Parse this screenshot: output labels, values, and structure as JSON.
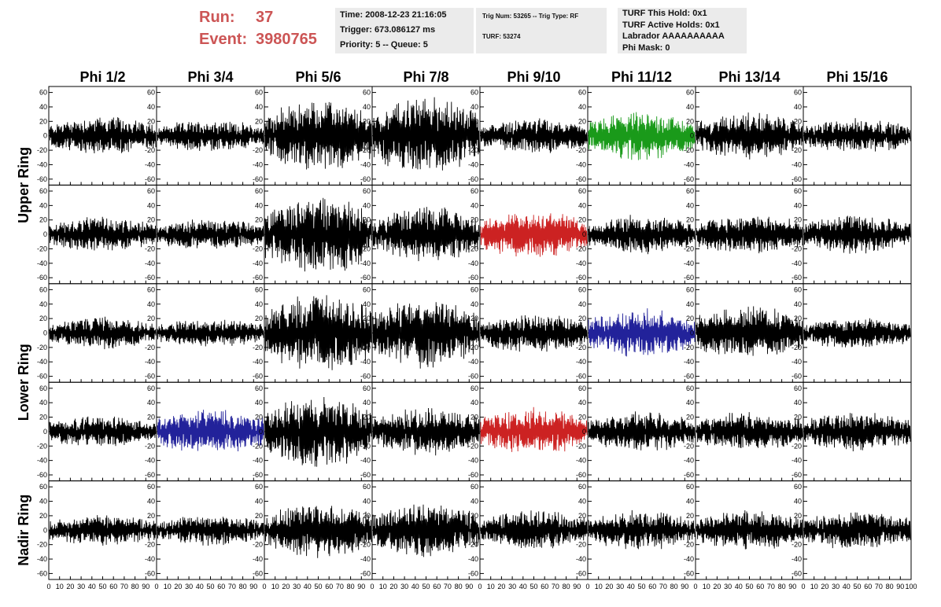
{
  "header": {
    "run_label": "Run:",
    "run_value": "37",
    "event_label": "Event:",
    "event_value": "3980765"
  },
  "info_time": {
    "time": "Time: 2008-12-23 21:16:05",
    "trigger": "Trigger: 673.086127 ms",
    "priority": "Priority: 5 -- Queue: 5"
  },
  "info_trig": {
    "trig": "Trig Num: 53265 -- Trig Type: RF",
    "turf": "TURF: 53274"
  },
  "info_turf": {
    "this_hold": "TURF This Hold: 0x1",
    "active_holds": "TURF Active Holds: 0x1",
    "labrador": "Labrador AAAAAAAAAA",
    "phi_mask": "Phi Mask: 0"
  },
  "chart_data": {
    "type": "line",
    "columns": [
      "Phi 1/2",
      "Phi 3/4",
      "Phi 5/6",
      "Phi 7/8",
      "Phi 9/10",
      "Phi 11/12",
      "Phi 13/14",
      "Phi 15/16"
    ],
    "row_groups": [
      "Upper Ring",
      "Lower Ring",
      "Nadir Ring"
    ],
    "rows_per_group": [
      2,
      2,
      1
    ],
    "ylim": [
      -65,
      65
    ],
    "yticks": [
      -60,
      -40,
      -20,
      0,
      20,
      40,
      60
    ],
    "xlim": [
      0,
      100
    ],
    "xticks": [
      0,
      10,
      20,
      30,
      40,
      50,
      60,
      70,
      80,
      90,
      100
    ],
    "grid": false,
    "amplitude_by_row": [
      [
        25,
        20,
        45,
        50,
        22,
        30,
        30,
        22
      ],
      [
        22,
        20,
        50,
        35,
        30,
        25,
        25,
        25
      ],
      [
        20,
        18,
        50,
        45,
        25,
        30,
        35,
        20
      ],
      [
        20,
        28,
        45,
        30,
        30,
        25,
        25,
        25
      ],
      [
        20,
        20,
        35,
        35,
        25,
        25,
        25,
        25
      ]
    ],
    "highlight_colors": {
      "0-5": "#1a9a1a",
      "1-4": "#cc2222",
      "2-5": "#22229a",
      "3-1": "#22229a",
      "3-4": "#cc2222"
    },
    "default_color": "#000000"
  }
}
